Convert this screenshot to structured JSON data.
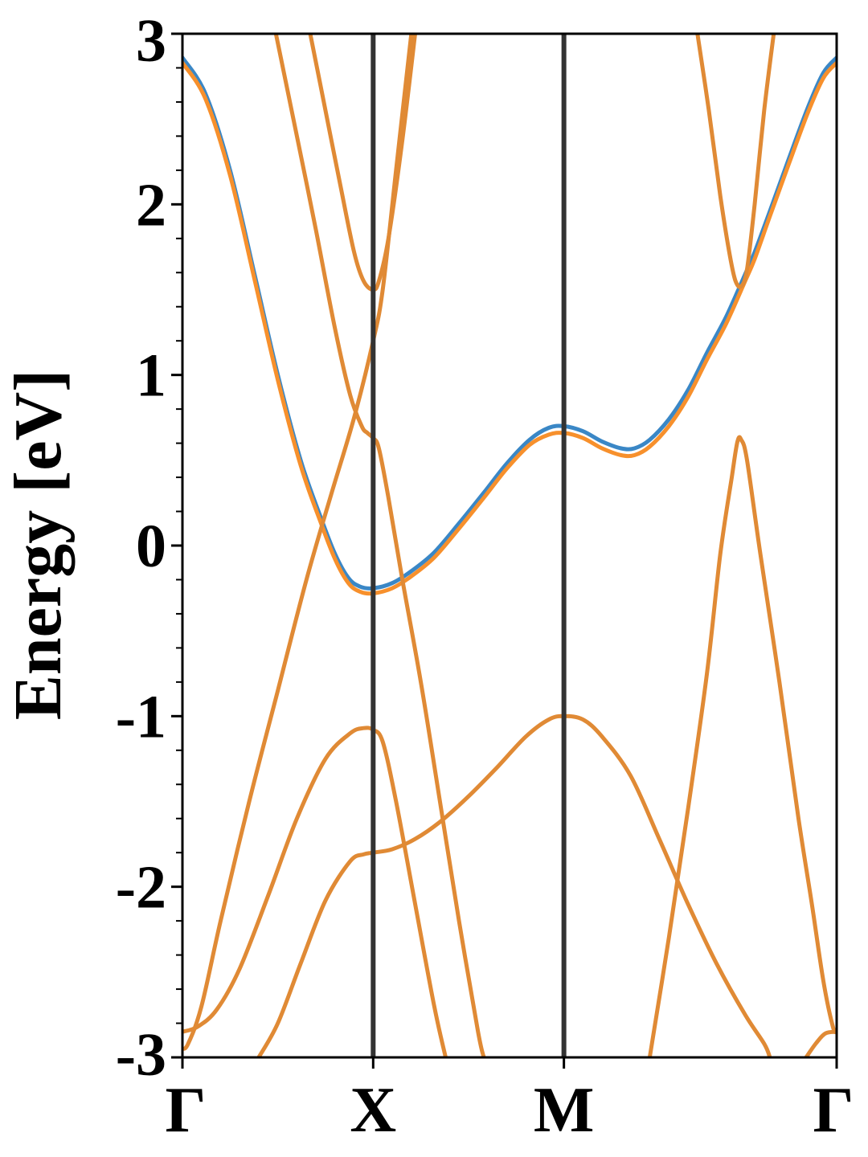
{
  "chart_data": {
    "type": "line",
    "title": "",
    "xlabel": "",
    "ylabel": "Energy [eV]",
    "ylim": [
      -3,
      3
    ],
    "grid": false,
    "legend": "none",
    "x_ticks": [
      {
        "label": "Γ",
        "pos": 0
      },
      {
        "label": "X",
        "pos": 1
      },
      {
        "label": "M",
        "pos": 2
      },
      {
        "label": "Γ",
        "pos": 3.43
      }
    ],
    "y_ticks": [
      -3,
      -2,
      -1,
      0,
      1,
      2,
      3
    ],
    "colors": {
      "spin_up": "#3a87c6",
      "spin_down": "#f7902c",
      "vline": "#333333"
    },
    "series": [
      {
        "color": "#3a87c6",
        "points": [
          [
            0,
            2.86
          ],
          [
            0.12,
            2.65
          ],
          [
            0.25,
            2.2
          ],
          [
            0.38,
            1.58
          ],
          [
            0.5,
            1.0
          ],
          [
            0.62,
            0.5
          ],
          [
            0.72,
            0.18
          ],
          [
            0.8,
            -0.05
          ],
          [
            0.87,
            -0.19
          ],
          [
            0.93,
            -0.24
          ],
          [
            1.0,
            -0.25
          ],
          [
            1.1,
            -0.22
          ],
          [
            1.2,
            -0.15
          ],
          [
            1.32,
            -0.04
          ],
          [
            1.45,
            0.13
          ],
          [
            1.58,
            0.31
          ],
          [
            1.7,
            0.48
          ],
          [
            1.82,
            0.62
          ],
          [
            1.92,
            0.69
          ],
          [
            2.0,
            0.7
          ],
          [
            2.1,
            0.67
          ],
          [
            2.2,
            0.61
          ],
          [
            2.3,
            0.57
          ],
          [
            2.37,
            0.57
          ],
          [
            2.45,
            0.62
          ],
          [
            2.55,
            0.74
          ],
          [
            2.65,
            0.91
          ],
          [
            2.75,
            1.13
          ],
          [
            2.85,
            1.34
          ],
          [
            2.95,
            1.59
          ],
          [
            3.0,
            1.72
          ],
          [
            3.08,
            1.96
          ],
          [
            3.18,
            2.27
          ],
          [
            3.28,
            2.57
          ],
          [
            3.36,
            2.77
          ],
          [
            3.43,
            2.86
          ]
        ]
      },
      {
        "color": "#f7902c",
        "points": [
          [
            0,
            2.83
          ],
          [
            0.12,
            2.62
          ],
          [
            0.25,
            2.17
          ],
          [
            0.38,
            1.55
          ],
          [
            0.5,
            0.97
          ],
          [
            0.62,
            0.47
          ],
          [
            0.72,
            0.15
          ],
          [
            0.8,
            -0.08
          ],
          [
            0.87,
            -0.22
          ],
          [
            0.93,
            -0.27
          ],
          [
            1.0,
            -0.28
          ],
          [
            1.1,
            -0.25
          ],
          [
            1.2,
            -0.18
          ],
          [
            1.32,
            -0.07
          ],
          [
            1.45,
            0.1
          ],
          [
            1.58,
            0.28
          ],
          [
            1.7,
            0.45
          ],
          [
            1.82,
            0.59
          ],
          [
            1.92,
            0.65
          ],
          [
            2.0,
            0.66
          ],
          [
            2.1,
            0.63
          ],
          [
            2.2,
            0.57
          ],
          [
            2.3,
            0.53
          ],
          [
            2.37,
            0.53
          ],
          [
            2.45,
            0.58
          ],
          [
            2.55,
            0.7
          ],
          [
            2.65,
            0.87
          ],
          [
            2.75,
            1.09
          ],
          [
            2.85,
            1.3
          ],
          [
            2.95,
            1.55
          ],
          [
            3.0,
            1.68
          ],
          [
            3.08,
            1.93
          ],
          [
            3.18,
            2.24
          ],
          [
            3.28,
            2.54
          ],
          [
            3.36,
            2.74
          ],
          [
            3.43,
            2.83
          ]
        ]
      },
      {
        "color": "#e08a35",
        "points": [
          [
            0.49,
            3.0
          ],
          [
            0.6,
            2.4
          ],
          [
            0.7,
            1.85
          ],
          [
            0.8,
            1.27
          ],
          [
            0.88,
            0.88
          ],
          [
            0.94,
            0.7
          ],
          [
            0.97,
            0.66
          ],
          [
            1.0,
            0.63
          ],
          [
            1.03,
            0.57
          ],
          [
            1.08,
            0.28
          ],
          [
            1.15,
            -0.18
          ],
          [
            1.25,
            -0.8
          ],
          [
            1.35,
            -1.5
          ],
          [
            1.45,
            -2.2
          ],
          [
            1.55,
            -2.85
          ],
          [
            1.58,
            -3.0
          ]
        ]
      },
      {
        "color": "#e08a35",
        "points": [
          [
            0.67,
            3.0
          ],
          [
            0.75,
            2.55
          ],
          [
            0.83,
            2.1
          ],
          [
            0.9,
            1.72
          ],
          [
            0.95,
            1.55
          ],
          [
            1.0,
            1.5
          ],
          [
            1.03,
            1.55
          ],
          [
            1.08,
            1.8
          ],
          [
            1.15,
            2.35
          ],
          [
            1.22,
            3.0
          ]
        ]
      },
      {
        "color": "#e08a35",
        "points": [
          [
            1.2,
            3.0
          ],
          [
            1.12,
            2.2
          ],
          [
            1.05,
            1.5
          ],
          [
            1.0,
            1.2
          ],
          [
            0.9,
            0.75
          ],
          [
            0.78,
            0.3
          ],
          [
            0.65,
            -0.2
          ],
          [
            0.5,
            -0.85
          ],
          [
            0.35,
            -1.5
          ],
          [
            0.2,
            -2.2
          ],
          [
            0.1,
            -2.7
          ],
          [
            0.03,
            -2.92
          ],
          [
            0.0,
            -2.95
          ]
        ]
      },
      {
        "color": "#e08a35",
        "points": [
          [
            0.0,
            -2.85
          ],
          [
            0.08,
            -2.82
          ],
          [
            0.18,
            -2.72
          ],
          [
            0.3,
            -2.48
          ],
          [
            0.45,
            -2.05
          ],
          [
            0.6,
            -1.6
          ],
          [
            0.75,
            -1.25
          ],
          [
            0.88,
            -1.1
          ],
          [
            0.95,
            -1.07
          ],
          [
            1.0,
            -1.08
          ],
          [
            1.05,
            -1.15
          ],
          [
            1.12,
            -1.5
          ],
          [
            1.22,
            -2.1
          ],
          [
            1.32,
            -2.7
          ],
          [
            1.38,
            -3.0
          ]
        ]
      },
      {
        "color": "#e08a35",
        "points": [
          [
            0.4,
            -3.0
          ],
          [
            0.5,
            -2.8
          ],
          [
            0.62,
            -2.45
          ],
          [
            0.75,
            -2.08
          ],
          [
            0.88,
            -1.85
          ],
          [
            0.95,
            -1.81
          ],
          [
            1.0,
            -1.8
          ],
          [
            1.1,
            -1.78
          ],
          [
            1.22,
            -1.72
          ],
          [
            1.35,
            -1.62
          ],
          [
            1.5,
            -1.47
          ],
          [
            1.65,
            -1.3
          ],
          [
            1.8,
            -1.12
          ],
          [
            1.92,
            -1.02
          ],
          [
            2.0,
            -1.0
          ],
          [
            2.1,
            -1.02
          ],
          [
            2.2,
            -1.12
          ],
          [
            2.35,
            -1.35
          ],
          [
            2.5,
            -1.72
          ],
          [
            2.65,
            -2.1
          ],
          [
            2.8,
            -2.45
          ],
          [
            2.95,
            -2.75
          ],
          [
            3.05,
            -2.92
          ],
          [
            3.08,
            -3.0
          ]
        ]
      },
      {
        "color": "#e08a35",
        "points": [
          [
            2.45,
            -3.0
          ],
          [
            2.55,
            -2.3
          ],
          [
            2.65,
            -1.55
          ],
          [
            2.75,
            -0.75
          ],
          [
            2.82,
            -0.05
          ],
          [
            2.88,
            0.4
          ],
          [
            2.91,
            0.61
          ],
          [
            2.93,
            0.62
          ],
          [
            2.96,
            0.5
          ],
          [
            3.03,
            -0.05
          ],
          [
            3.13,
            -0.8
          ],
          [
            3.23,
            -1.6
          ],
          [
            3.3,
            -2.1
          ],
          [
            3.36,
            -2.55
          ],
          [
            3.41,
            -2.82
          ],
          [
            3.43,
            -2.85
          ]
        ]
      },
      {
        "color": "#e08a35",
        "points": [
          [
            2.7,
            3.0
          ],
          [
            2.76,
            2.55
          ],
          [
            2.82,
            2.05
          ],
          [
            2.87,
            1.7
          ],
          [
            2.9,
            1.55
          ],
          [
            2.93,
            1.52
          ],
          [
            2.96,
            1.62
          ],
          [
            3.0,
            2.0
          ],
          [
            3.05,
            2.55
          ],
          [
            3.1,
            3.0
          ]
        ]
      },
      {
        "color": "#e08a35",
        "points": [
          [
            3.27,
            -3.0
          ],
          [
            3.32,
            -2.92
          ],
          [
            3.37,
            -2.86
          ],
          [
            3.43,
            -2.85
          ]
        ]
      }
    ]
  }
}
